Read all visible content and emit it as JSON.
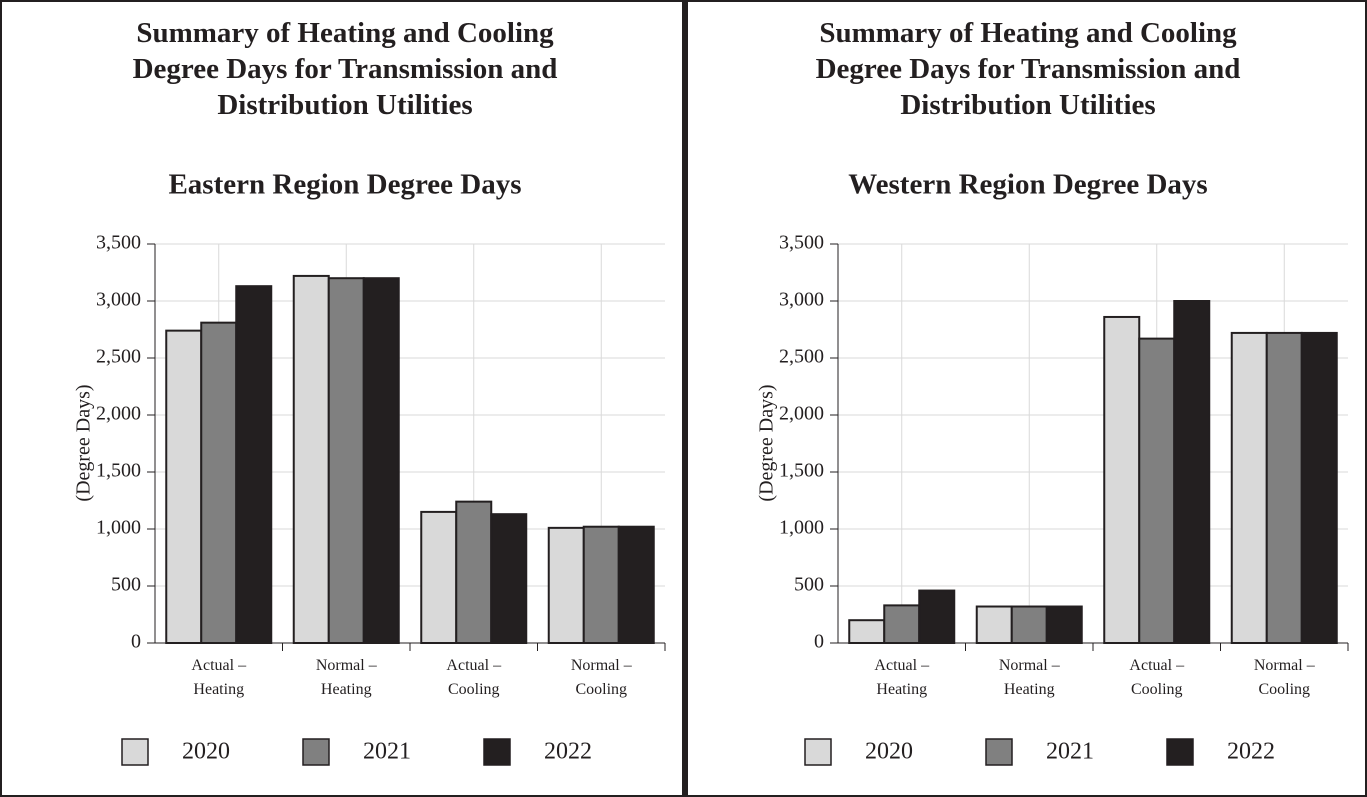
{
  "chart_data": [
    {
      "type": "bar",
      "title": "Summary of Heating and Cooling\nDegree Days for Transmission and\nDistribution Utilities",
      "subtitle": "Eastern Region Degree Days",
      "y_label": "(Degree Days)",
      "categories": [
        "Actual –\nHeating",
        "Normal –\nHeating",
        "Actual –\nCooling",
        "Normal –\nCooling"
      ],
      "series": [
        {
          "name": "2020",
          "color": "#d9d9d9",
          "values": [
            2740,
            3220,
            1150,
            1010
          ]
        },
        {
          "name": "2021",
          "color": "#808080",
          "values": [
            2810,
            3200,
            1240,
            1020
          ]
        },
        {
          "name": "2022",
          "color": "#231f20",
          "values": [
            3130,
            3200,
            1130,
            1020
          ]
        }
      ],
      "ylim": [
        0,
        3500
      ],
      "yticks": [
        0,
        500,
        {
          "value": 1000,
          "label": "1,000"
        },
        {
          "value": 1500,
          "label": "1,500"
        },
        {
          "value": 2000,
          "label": "2,000"
        },
        {
          "value": 2500,
          "label": "2,500"
        },
        {
          "value": 3000,
          "label": "3,000"
        },
        {
          "value": 3500,
          "label": "3,500"
        }
      ],
      "grid": true
    },
    {
      "type": "bar",
      "title": "Summary of Heating and Cooling\nDegree Days for Transmission and\nDistribution Utilities",
      "subtitle": "Western Region Degree Days",
      "y_label": "(Degree Days)",
      "categories": [
        "Actual –\nHeating",
        "Normal –\nHeating",
        "Actual –\nCooling",
        "Normal –\nCooling"
      ],
      "series": [
        {
          "name": "2020",
          "color": "#d9d9d9",
          "values": [
            200,
            320,
            2860,
            2720
          ]
        },
        {
          "name": "2021",
          "color": "#808080",
          "values": [
            330,
            320,
            2670,
            2720
          ]
        },
        {
          "name": "2022",
          "color": "#231f20",
          "values": [
            460,
            320,
            3000,
            2720
          ]
        }
      ],
      "ylim": [
        0,
        3500
      ],
      "yticks": [
        0,
        500,
        {
          "value": 1000,
          "label": "1,000"
        },
        {
          "value": 1500,
          "label": "1,500"
        },
        {
          "value": 2000,
          "label": "2,000"
        },
        {
          "value": 2500,
          "label": "2,500"
        },
        {
          "value": 3000,
          "label": "3,000"
        },
        {
          "value": 3500,
          "label": "3,500"
        }
      ],
      "grid": true
    }
  ]
}
